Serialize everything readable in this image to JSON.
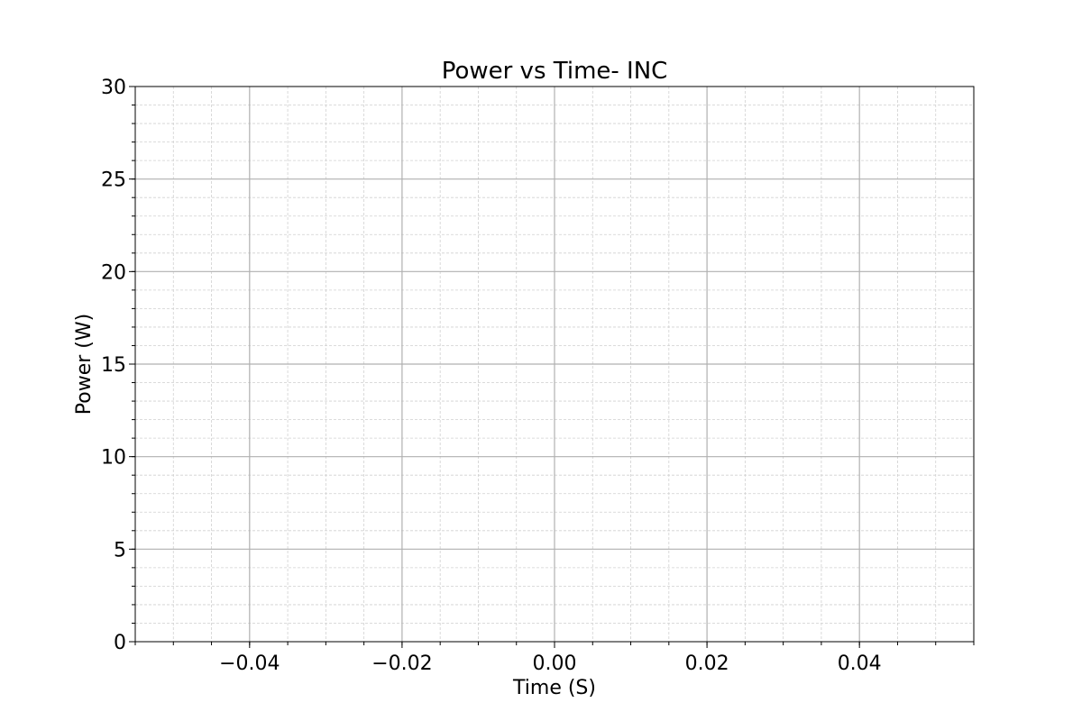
{
  "chart_data": {
    "type": "line",
    "title": "Power vs Time- INC",
    "xlabel": "Time (S)",
    "ylabel": "Power (W)",
    "xlim": [
      -0.055,
      0.055
    ],
    "ylim": [
      0,
      30
    ],
    "x_ticks": [
      -0.04,
      -0.02,
      0.0,
      0.02,
      0.04
    ],
    "x_tick_labels": [
      "−0.04",
      "−0.02",
      "0.00",
      "0.02",
      "0.04"
    ],
    "x_minor_step": 0.005,
    "y_ticks": [
      0,
      5,
      10,
      15,
      20,
      25,
      30
    ],
    "y_tick_labels": [
      "0",
      "5",
      "10",
      "15",
      "20",
      "25",
      "30"
    ],
    "y_minor_step": 1,
    "grid": true,
    "minor_grid": true,
    "series": [],
    "colors": {
      "major_grid": "#b0b0b0",
      "minor_grid": "#d0d0d0",
      "axis": "#000000"
    }
  }
}
